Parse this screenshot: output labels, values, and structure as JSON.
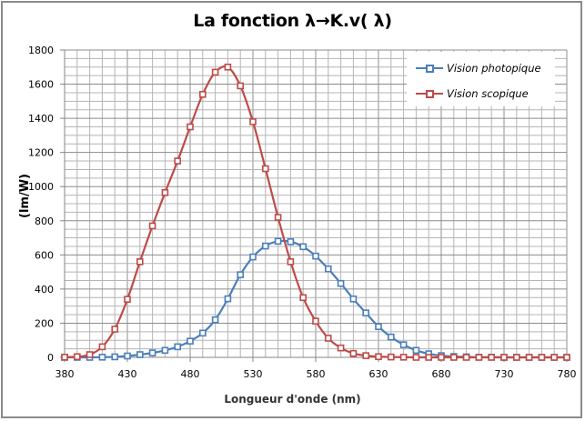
{
  "chart_data": {
    "type": "line",
    "title": "La fonction λ→K.v( λ)",
    "xlabel": "Longueur d'onde (nm)",
    "ylabel": "(lm/W)",
    "xlim": [
      380,
      780
    ],
    "ylim": [
      0,
      1800
    ],
    "x_ticks": [
      380,
      430,
      480,
      530,
      580,
      630,
      680,
      730,
      780
    ],
    "y_ticks": [
      0,
      200,
      400,
      600,
      800,
      1000,
      1200,
      1400,
      1600,
      1800
    ],
    "grid": true,
    "legend_position": "top-right",
    "x": [
      380,
      390,
      400,
      410,
      420,
      430,
      440,
      450,
      460,
      470,
      480,
      490,
      500,
      510,
      520,
      530,
      540,
      550,
      560,
      570,
      580,
      590,
      600,
      610,
      620,
      630,
      640,
      650,
      660,
      670,
      680,
      690,
      700,
      710,
      720,
      730,
      740,
      750,
      760,
      770,
      780
    ],
    "series": [
      {
        "name": "Vision photopique",
        "color": "#4a7ebb",
        "values": [
          0,
          0,
          0,
          1,
          3,
          8,
          16,
          26,
          41,
          62,
          95,
          142,
          220,
          343,
          484,
          588,
          652,
          680,
          677,
          648,
          593,
          518,
          433,
          342,
          260,
          180,
          119,
          74,
          41,
          21,
          10,
          5,
          3,
          1,
          1,
          0,
          0,
          0,
          0,
          0,
          0
        ]
      },
      {
        "name": "Vision scopique",
        "color": "#be4b48",
        "values": [
          1,
          4,
          16,
          62,
          165,
          340,
          560,
          770,
          965,
          1150,
          1350,
          1540,
          1670,
          1700,
          1590,
          1380,
          1105,
          820,
          560,
          350,
          212,
          112,
          55,
          23,
          10,
          4,
          2,
          1,
          0,
          0,
          0,
          0,
          0,
          0,
          0,
          0,
          0,
          0,
          0,
          0,
          0
        ]
      }
    ]
  },
  "legend": {
    "items": [
      {
        "label": "Vision photopique",
        "color": "#4a7ebb"
      },
      {
        "label": "Vision scopique",
        "color": "#be4b48"
      }
    ]
  },
  "colors": {
    "grid_major": "#8c8c8c",
    "grid_minor": "#b4b4b4",
    "frame": "#8a8a8a"
  }
}
